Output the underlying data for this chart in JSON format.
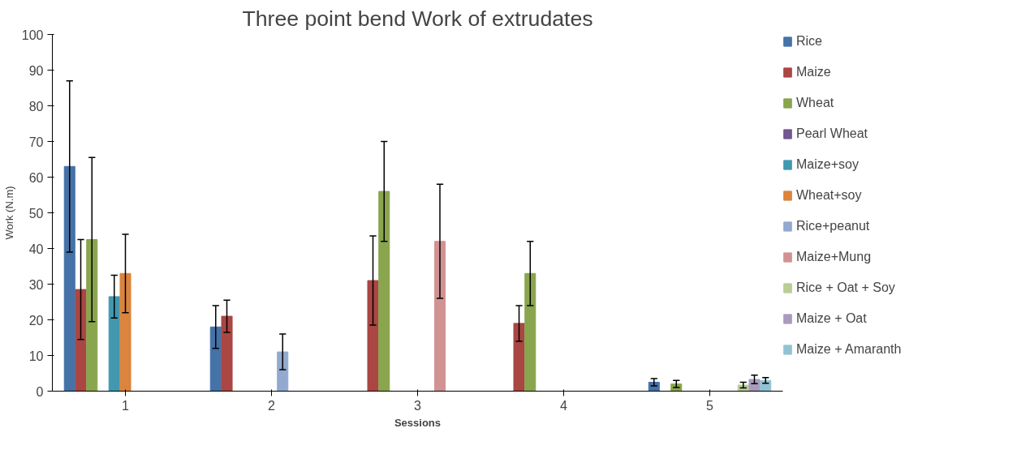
{
  "chart_data": {
    "type": "bar",
    "title": "Three point bend Work of extrudates",
    "xlabel": "Sessions",
    "ylabel": "Work (N.m)",
    "categories": [
      "1",
      "2",
      "3",
      "4",
      "5"
    ],
    "ylim": [
      0,
      100
    ],
    "yticks": [
      0,
      10,
      20,
      30,
      40,
      50,
      60,
      70,
      80,
      90,
      100
    ],
    "grid": false,
    "legend": "right",
    "series": [
      {
        "name": "Rice",
        "color": "#4572a7",
        "values": [
          63,
          18,
          null,
          null,
          2.5
        ],
        "errors": [
          24,
          6,
          null,
          null,
          1
        ]
      },
      {
        "name": "Maize",
        "color": "#aa4643",
        "values": [
          28.5,
          21,
          31,
          19,
          null
        ],
        "errors": [
          14,
          4.5,
          12.5,
          5,
          null
        ]
      },
      {
        "name": "Wheat",
        "color": "#89a54e",
        "values": [
          42.5,
          null,
          56,
          33,
          2
        ],
        "errors": [
          23,
          null,
          14,
          9,
          1
        ]
      },
      {
        "name": "Pearl Wheat",
        "color": "#71588f",
        "values": [
          null,
          null,
          null,
          null,
          null
        ]
      },
      {
        "name": "Maize+soy",
        "color": "#4198af",
        "values": [
          26.5,
          null,
          null,
          null,
          null
        ],
        "errors": [
          6,
          null,
          null,
          null,
          null
        ]
      },
      {
        "name": "Wheat+soy",
        "color": "#db843d",
        "values": [
          33,
          null,
          null,
          null,
          null
        ],
        "errors": [
          11,
          null,
          null,
          null,
          null
        ]
      },
      {
        "name": "Rice+peanut",
        "color": "#93a9cf",
        "values": [
          null,
          11,
          null,
          null,
          null
        ],
        "errors": [
          null,
          5,
          null,
          null,
          null
        ]
      },
      {
        "name": "Maize+Mung",
        "color": "#d19392",
        "values": [
          null,
          null,
          42,
          null,
          null
        ],
        "errors": [
          null,
          null,
          16,
          null,
          null
        ]
      },
      {
        "name": "Rice + Oat + Soy",
        "color": "#b9cd96",
        "values": [
          null,
          null,
          null,
          null,
          1.7
        ],
        "errors": [
          null,
          null,
          null,
          null,
          0.8
        ]
      },
      {
        "name": "Maize + Oat",
        "color": "#a99bbd",
        "values": [
          null,
          null,
          null,
          null,
          3.3
        ],
        "errors": [
          null,
          null,
          null,
          null,
          1.2
        ]
      },
      {
        "name": "Maize + Amaranth",
        "color": "#92c3d4",
        "values": [
          null,
          null,
          null,
          null,
          3
        ],
        "errors": [
          null,
          null,
          null,
          null,
          0.8
        ]
      }
    ]
  }
}
